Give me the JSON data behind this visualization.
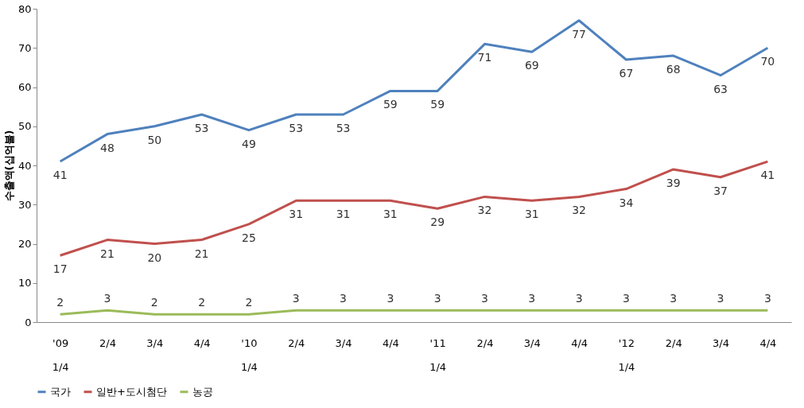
{
  "chart_data": {
    "type": "line",
    "ylabel": "수출액(십억불)",
    "categories": [
      "'09\n1/4",
      "2/4",
      "3/4",
      "4/4",
      "'10\n1/4",
      "2/4",
      "3/4",
      "4/4",
      "'11\n1/4",
      "2/4",
      "3/4",
      "4/4",
      "'12\n1/4",
      "2/4",
      "3/4",
      "4/4"
    ],
    "series": [
      {
        "name": "국가",
        "color": "#4f81bd",
        "values": [
          41,
          48,
          50,
          53,
          49,
          53,
          53,
          59,
          59,
          71,
          69,
          77,
          67,
          68,
          63,
          70
        ]
      },
      {
        "name": "일반+도시첨단",
        "color": "#c0504d",
        "values": [
          17,
          21,
          20,
          21,
          25,
          31,
          31,
          31,
          29,
          32,
          31,
          32,
          34,
          39,
          37,
          41
        ]
      },
      {
        "name": "농공",
        "color": "#9bbb59",
        "values": [
          2,
          3,
          2,
          2,
          2,
          3,
          3,
          3,
          3,
          3,
          3,
          3,
          3,
          3,
          3,
          3
        ]
      }
    ],
    "ylim": [
      0,
      80
    ],
    "yticks": [
      0,
      10,
      20,
      30,
      40,
      50,
      60,
      70,
      80
    ],
    "grid": false,
    "legend": "bottom",
    "data_labels": true,
    "marker": "none",
    "line_style": "solid"
  }
}
